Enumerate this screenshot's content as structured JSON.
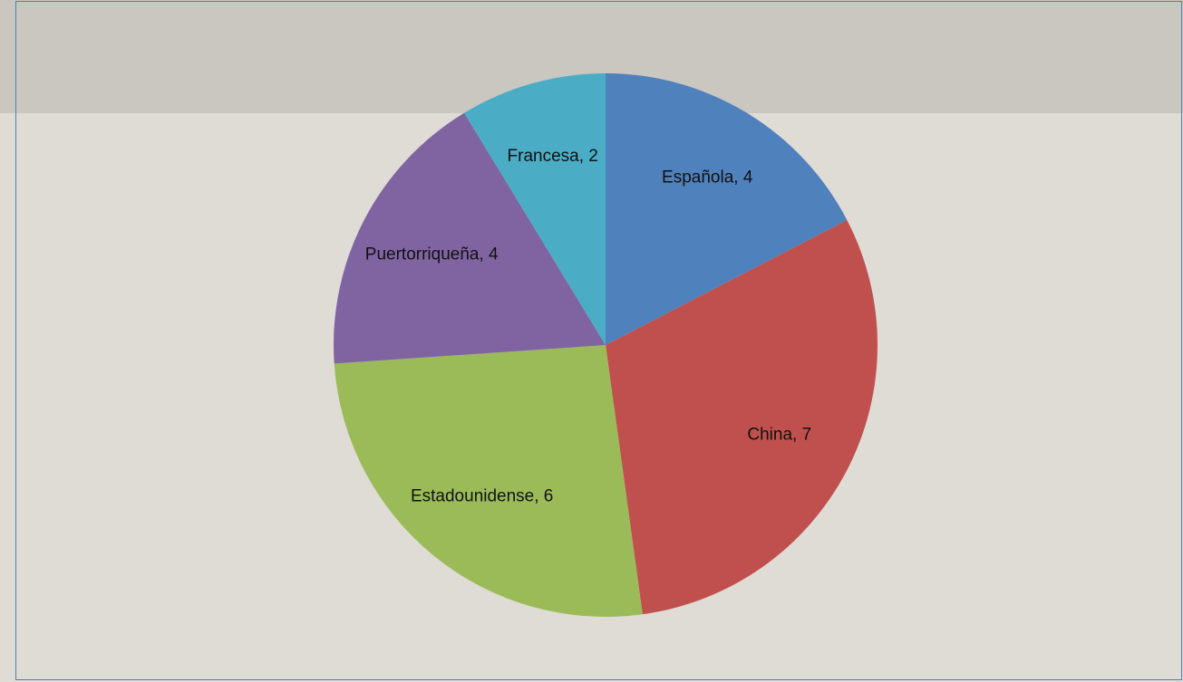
{
  "chart_data": {
    "type": "pie",
    "values": [
      4,
      7,
      6,
      4,
      2
    ],
    "value_labels": [
      "Española, 4",
      "China, 7",
      "Estadounidense, 6",
      "Puertorriqueña, 4",
      "Francesa, 2"
    ],
    "colors": [
      "#4f81bd",
      "#c0504d",
      "#9bbb59",
      "#8064a2",
      "#4bacc6"
    ],
    "start_angle": 0,
    "direction": "clockwise"
  }
}
